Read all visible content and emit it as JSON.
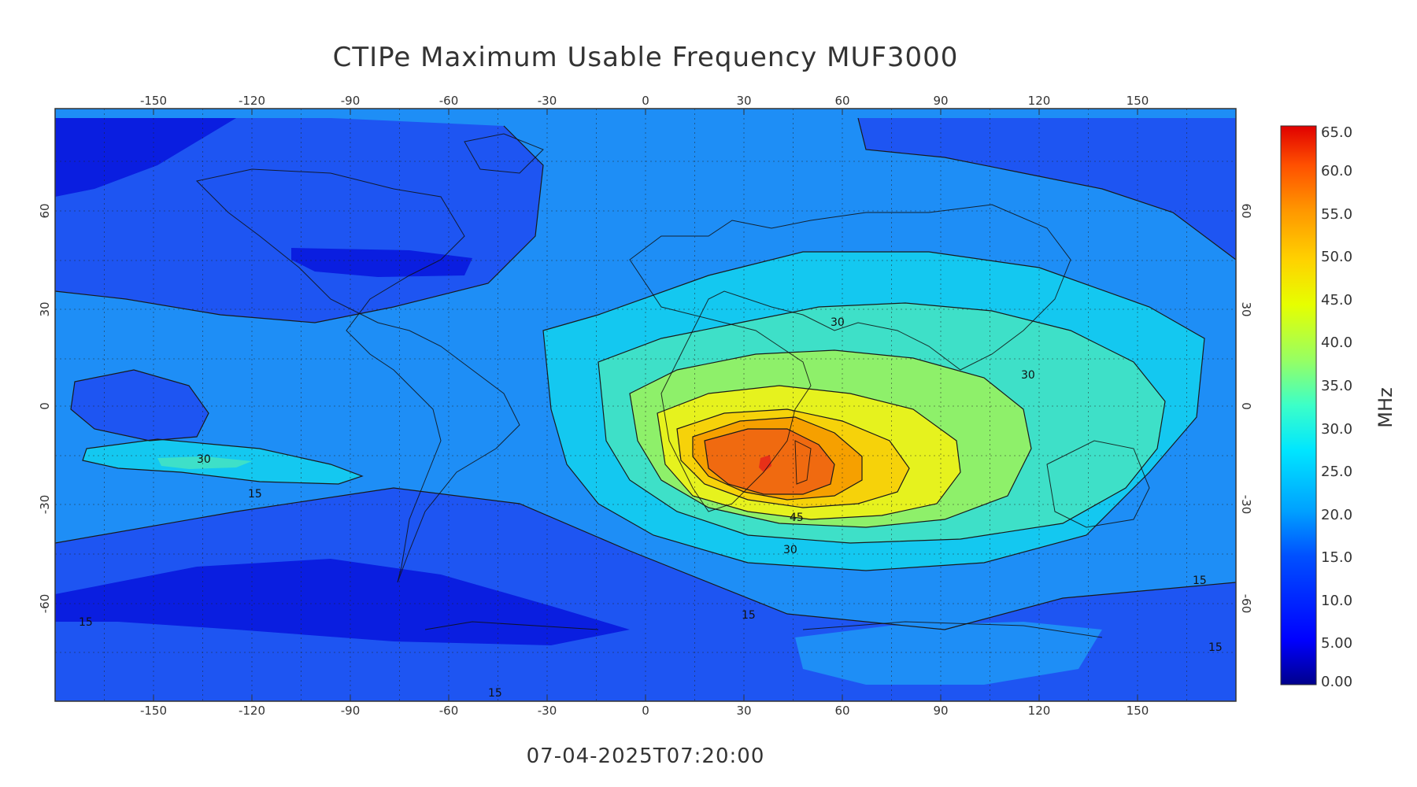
{
  "title": "CTIPe Maximum Usable Frequency MUF3000",
  "timestamp": "07-04-2025T07:20:00",
  "axes": {
    "lon_ticks": [
      "-150",
      "-120",
      "-90",
      "-60",
      "-30",
      "0",
      "30",
      "60",
      "90",
      "120",
      "150"
    ],
    "lat_ticks": [
      "60",
      "30",
      "0",
      "-30",
      "-60"
    ]
  },
  "colorbar": {
    "unit": "MHz",
    "ticks": [
      "65.0",
      "60.0",
      "55.0",
      "50.0",
      "45.0",
      "40.0",
      "35.0",
      "30.0",
      "25.0",
      "20.0",
      "15.0",
      "10.0",
      "5.00",
      "0.00"
    ],
    "min": 0,
    "max": 65,
    "stops": [
      "#00008c",
      "#0000ff",
      "#0050ff",
      "#00a0ff",
      "#00e6ff",
      "#3cffc8",
      "#96ff64",
      "#e6ff00",
      "#ffd200",
      "#ff9600",
      "#ff5000",
      "#ff0000",
      "#c80000"
    ]
  },
  "contour_labels": [
    "30",
    "15",
    "15",
    "15",
    "15",
    "15",
    "15",
    "30",
    "45",
    "30",
    "30"
  ],
  "colors": {
    "level_10": "#0a1ee0",
    "level_15": "#1e55f2",
    "level_20": "#1e8ef6",
    "level_25": "#14c8f0",
    "level_30": "#3ee0c8",
    "level_35": "#8ef06a",
    "level_40": "#e6f21e",
    "level_45": "#f6d20a",
    "level_50": "#f6a000",
    "level_55": "#f06a10",
    "level_60": "#e83018"
  }
}
